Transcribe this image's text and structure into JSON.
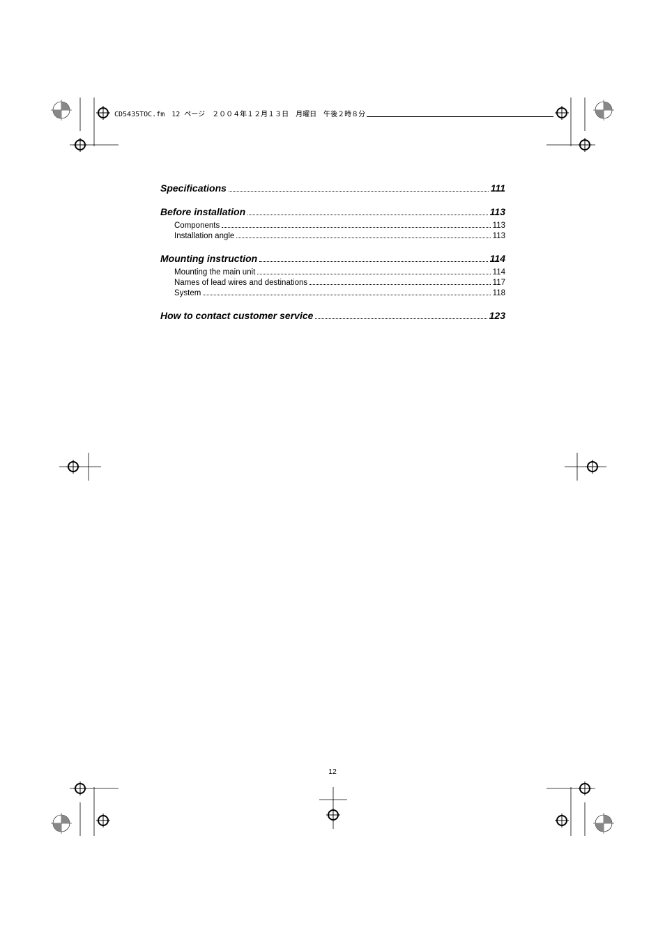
{
  "header_text": "CD5435TOC.fm　12 ページ　２００４年１２月１３日　月曜日　午後２時８分",
  "page_number": "12",
  "toc": [
    {
      "type": "main",
      "title": "Specifications",
      "page": "111"
    },
    {
      "type": "main",
      "title": "Before installation",
      "page": "113"
    },
    {
      "type": "sub",
      "title": "Components",
      "page": "113"
    },
    {
      "type": "sub",
      "title": "Installation angle",
      "page": "113"
    },
    {
      "type": "main",
      "title": "Mounting instruction",
      "page": "114"
    },
    {
      "type": "sub",
      "title": "Mounting the main unit",
      "page": "114"
    },
    {
      "type": "sub",
      "title": "Names of lead wires and destinations",
      "page": "117"
    },
    {
      "type": "sub",
      "title": "System",
      "page": "118"
    },
    {
      "type": "main",
      "title": "How to contact customer service",
      "page": "123"
    }
  ],
  "crop_marks": {
    "color": "#000000",
    "radial_fill": "#888888"
  }
}
